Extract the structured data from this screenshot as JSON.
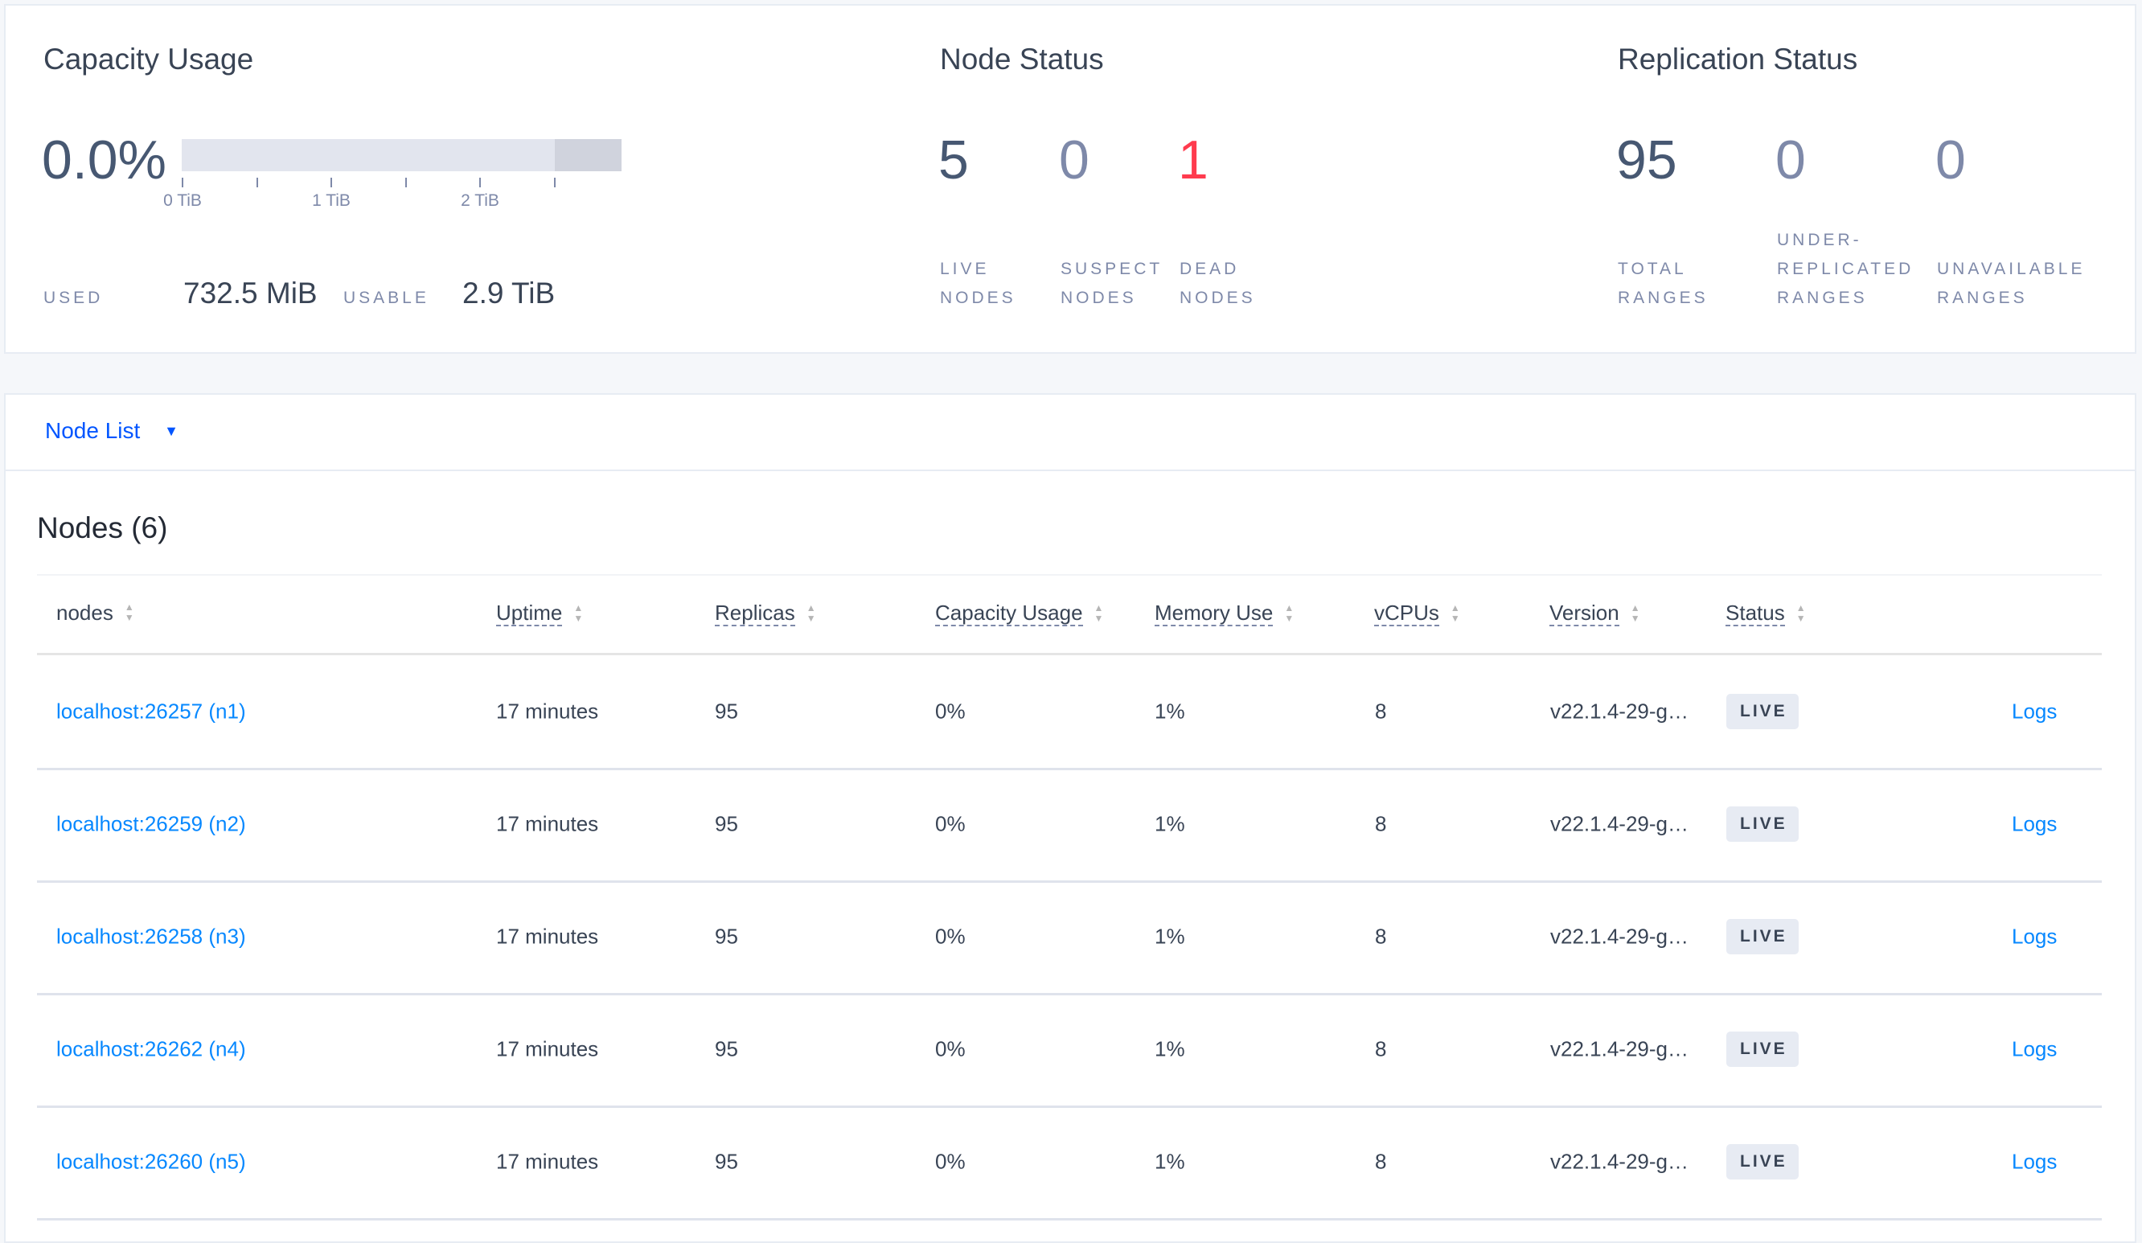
{
  "capacity": {
    "title": "Capacity Usage",
    "percent": "0.0%",
    "usage_fraction": 0.0,
    "ticks": [
      "0 TiB",
      "1 TiB",
      "2 TiB"
    ],
    "used_label": "USED",
    "used_value": "732.5 MiB",
    "usable_label": "USABLE",
    "usable_value": "2.9 TiB",
    "colors": {
      "bar": "#e2e5ee",
      "bar_end": "#d0d3dd"
    }
  },
  "node_status": {
    "title": "Node Status",
    "live": {
      "value": "5",
      "line1": "LIVE",
      "line2": "NODES"
    },
    "suspect": {
      "value": "0",
      "line1": "SUSPECT",
      "line2": "NODES"
    },
    "dead": {
      "value": "1",
      "line1": "DEAD",
      "line2": "NODES",
      "color": "#ff3b4e"
    }
  },
  "replication": {
    "title": "Replication Status",
    "total": {
      "value": "95",
      "line1": "TOTAL",
      "line2": "RANGES"
    },
    "under": {
      "value": "0",
      "line0": "UNDER-",
      "line1": "REPLICATED",
      "line2": "RANGES"
    },
    "unavailable": {
      "value": "0",
      "line1": "UNAVAILABLE",
      "line2": "RANGES"
    }
  },
  "node_list": {
    "dropdown_label": "Node List",
    "section_title": "Nodes (6)",
    "columns": [
      "nodes",
      "Uptime",
      "Replicas",
      "Capacity Usage",
      "Memory Use",
      "vCPUs",
      "Version",
      "Status"
    ],
    "rows": [
      {
        "node": "localhost:26257 (n1)",
        "uptime": "17 minutes",
        "replicas": "95",
        "capacity": "0%",
        "memory": "1%",
        "vcpus": "8",
        "version": "v22.1.4-29-g…",
        "status": "LIVE",
        "logs": "Logs"
      },
      {
        "node": "localhost:26259 (n2)",
        "uptime": "17 minutes",
        "replicas": "95",
        "capacity": "0%",
        "memory": "1%",
        "vcpus": "8",
        "version": "v22.1.4-29-g…",
        "status": "LIVE",
        "logs": "Logs"
      },
      {
        "node": "localhost:26258 (n3)",
        "uptime": "17 minutes",
        "replicas": "95",
        "capacity": "0%",
        "memory": "1%",
        "vcpus": "8",
        "version": "v22.1.4-29-g…",
        "status": "LIVE",
        "logs": "Logs"
      },
      {
        "node": "localhost:26262 (n4)",
        "uptime": "17 minutes",
        "replicas": "95",
        "capacity": "0%",
        "memory": "1%",
        "vcpus": "8",
        "version": "v22.1.4-29-g…",
        "status": "LIVE",
        "logs": "Logs"
      },
      {
        "node": "localhost:26260 (n5)",
        "uptime": "17 minutes",
        "replicas": "95",
        "capacity": "0%",
        "memory": "1%",
        "vcpus": "8",
        "version": "v22.1.4-29-g…",
        "status": "LIVE",
        "logs": "Logs"
      }
    ],
    "colors": {
      "link": "#0788ff",
      "dropdown": "#0055ff"
    }
  }
}
